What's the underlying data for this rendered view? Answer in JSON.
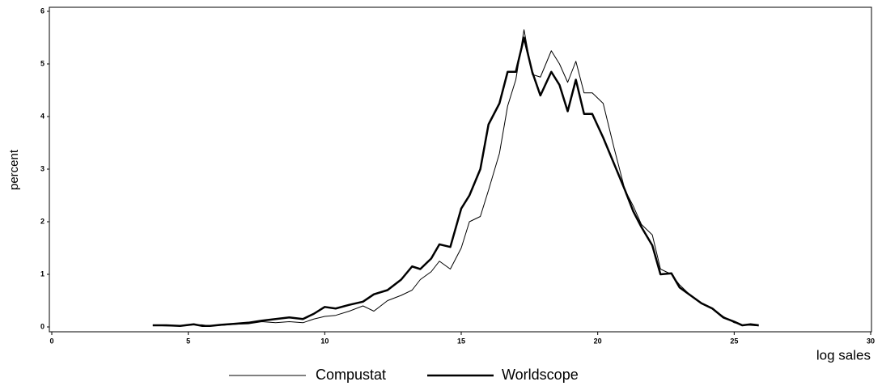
{
  "chart_data": {
    "type": "line",
    "y_label": "percent",
    "x_label": "log sales",
    "x": [
      3.7,
      4.2,
      4.7,
      5.2,
      5.5,
      5.8,
      6.2,
      6.7,
      7.2,
      7.7,
      8.2,
      8.7,
      9.2,
      9.6,
      10.0,
      10.4,
      10.9,
      11.4,
      11.8,
      12.3,
      12.8,
      13.2,
      13.5,
      13.9,
      14.2,
      14.6,
      15.0,
      15.3,
      15.7,
      16.0,
      16.4,
      16.7,
      17.0,
      17.3,
      17.6,
      17.9,
      18.3,
      18.6,
      18.9,
      19.2,
      19.5,
      19.8,
      20.2,
      20.6,
      21.0,
      21.3,
      21.6,
      22.0,
      22.3,
      22.7,
      23.0,
      23.4,
      23.8,
      24.2,
      24.6,
      25.0,
      25.3,
      25.6,
      25.9
    ],
    "series": [
      {
        "name": "Compustat",
        "color": "#000000",
        "line_width": 1,
        "values": [
          0.03,
          0.02,
          0.02,
          0.04,
          0.04,
          0.02,
          0.03,
          0.05,
          0.06,
          0.1,
          0.08,
          0.1,
          0.08,
          0.15,
          0.2,
          0.22,
          0.3,
          0.4,
          0.3,
          0.5,
          0.6,
          0.7,
          0.9,
          1.05,
          1.25,
          1.1,
          1.5,
          2.0,
          2.1,
          2.6,
          3.3,
          4.2,
          4.7,
          5.65,
          4.8,
          4.75,
          5.25,
          5.0,
          4.65,
          5.05,
          4.45,
          4.45,
          4.25,
          3.4,
          2.6,
          2.3,
          1.95,
          1.75,
          1.1,
          1.0,
          0.8,
          0.6,
          0.45,
          0.35,
          0.2,
          0.08,
          0.04,
          0.03,
          0.02
        ]
      },
      {
        "name": "Worldscope",
        "color": "#000000",
        "line_width": 2.5,
        "values": [
          0.03,
          0.03,
          0.02,
          0.05,
          0.02,
          0.02,
          0.04,
          0.06,
          0.08,
          0.12,
          0.15,
          0.18,
          0.15,
          0.25,
          0.38,
          0.35,
          0.42,
          0.48,
          0.62,
          0.7,
          0.9,
          1.15,
          1.1,
          1.3,
          1.57,
          1.52,
          2.25,
          2.5,
          3.0,
          3.85,
          4.25,
          4.85,
          4.85,
          5.5,
          4.85,
          4.4,
          4.85,
          4.6,
          4.1,
          4.7,
          4.05,
          4.05,
          3.6,
          3.1,
          2.6,
          2.2,
          1.9,
          1.55,
          1.0,
          1.02,
          0.75,
          0.6,
          0.45,
          0.35,
          0.18,
          0.1,
          0.03,
          0.05,
          0.03
        ]
      }
    ],
    "xlim": [
      0,
      30
    ],
    "xticks": [
      0,
      5,
      10,
      15,
      20,
      25,
      30
    ],
    "ylim": [
      0,
      6
    ],
    "yticks": [
      0,
      1,
      2,
      3,
      4,
      5,
      6
    ],
    "legend": "bottom"
  }
}
